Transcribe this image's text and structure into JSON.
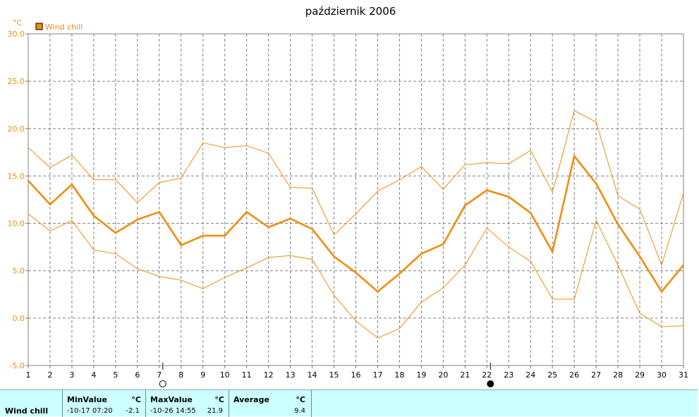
{
  "chart_data": {
    "type": "line",
    "title": "październik 2006",
    "yunit": "°C",
    "ylim": [
      -5.0,
      30.0
    ],
    "yticks": [
      "-5.0",
      "0.0",
      "5.0",
      "10.0",
      "15.0",
      "20.0",
      "25.0",
      "30.0"
    ],
    "x": [
      1,
      2,
      3,
      4,
      5,
      6,
      7,
      8,
      9,
      10,
      11,
      12,
      13,
      14,
      15,
      16,
      17,
      18,
      19,
      20,
      21,
      22,
      23,
      24,
      25,
      26,
      27,
      28,
      29,
      30,
      31
    ],
    "legend": {
      "label": "Wind chill",
      "color": "#f28c0f",
      "placement": "top-left"
    },
    "grid": true,
    "series": [
      {
        "name": "Wind chill",
        "role": "average",
        "values": [
          14.5,
          12.0,
          14.1,
          10.8,
          9.0,
          10.4,
          11.2,
          7.7,
          8.7,
          8.7,
          11.2,
          9.6,
          10.5,
          9.4,
          6.5,
          4.8,
          2.8,
          4.7,
          6.8,
          7.8,
          11.9,
          13.5,
          12.8,
          11.1,
          7.0,
          17.1,
          14.2,
          9.9,
          6.5,
          2.8,
          5.6
        ]
      },
      {
        "name": "",
        "role": "max",
        "values": [
          18.0,
          15.9,
          17.2,
          14.6,
          14.6,
          12.2,
          14.3,
          14.8,
          18.5,
          18.0,
          18.2,
          17.4,
          13.8,
          13.7,
          8.8,
          11.0,
          13.4,
          14.6,
          16.0,
          13.6,
          16.2,
          16.4,
          16.3,
          17.7,
          13.3,
          21.9,
          20.7,
          12.9,
          11.5,
          5.6,
          13.2
        ]
      },
      {
        "name": "",
        "role": "min",
        "values": [
          11.0,
          9.2,
          10.3,
          7.2,
          6.8,
          5.2,
          4.4,
          4.0,
          3.1,
          4.3,
          5.3,
          6.4,
          6.6,
          6.2,
          2.4,
          -0.3,
          -2.1,
          -1.1,
          1.7,
          3.2,
          5.6,
          9.5,
          7.5,
          6.0,
          2.0,
          2.0,
          10.3,
          5.6,
          0.5,
          -0.9,
          -0.8
        ]
      }
    ],
    "moon_markers": [
      {
        "day": 7,
        "phase": "full-moon"
      },
      {
        "day": 22,
        "phase": "new-moon"
      }
    ]
  },
  "stats": {
    "row_label": "Wind chill",
    "min": {
      "label": "MinValue",
      "unit": "°C",
      "date": "-10-17  07:20",
      "value": "-2.1"
    },
    "max": {
      "label": "MaxValue",
      "unit": "°C",
      "date": "-10-26  14:55",
      "value": "21.9"
    },
    "avg": {
      "label": "Average",
      "unit": "°C",
      "value": "9.4"
    }
  }
}
